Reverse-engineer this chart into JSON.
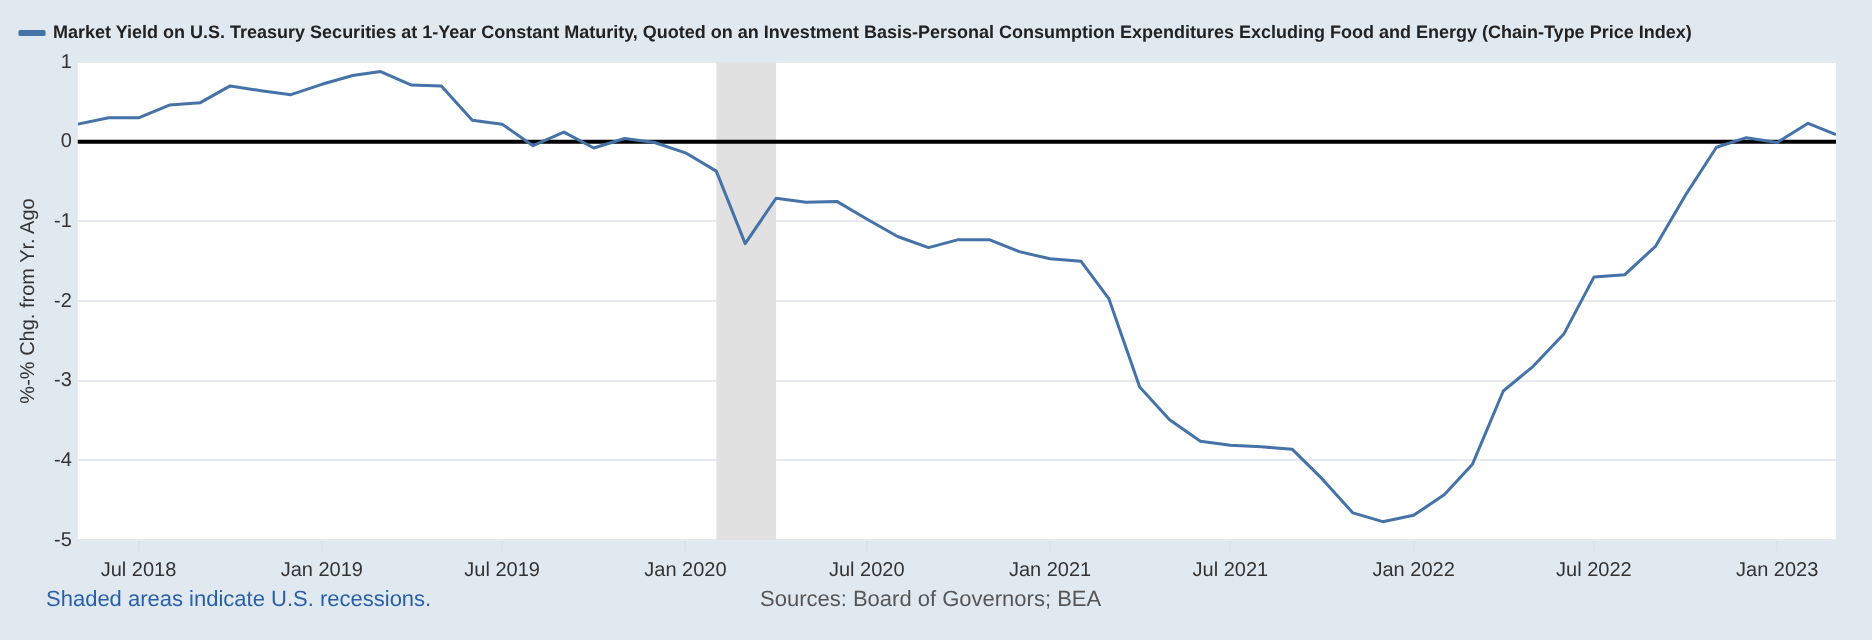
{
  "chart_data": {
    "type": "line",
    "ylabel": "%-% Chg. from Yr. Ago",
    "x": [
      "2018-05",
      "2018-06",
      "2018-07",
      "2018-08",
      "2018-09",
      "2018-10",
      "2018-11",
      "2018-12",
      "2019-01",
      "2019-02",
      "2019-03",
      "2019-04",
      "2019-05",
      "2019-06",
      "2019-07",
      "2019-08",
      "2019-09",
      "2019-10",
      "2019-11",
      "2019-12",
      "2020-01",
      "2020-02",
      "2020-03",
      "2020-04",
      "2020-05",
      "2020-06",
      "2020-07",
      "2020-08",
      "2020-09",
      "2020-10",
      "2020-11",
      "2020-12",
      "2021-01",
      "2021-02",
      "2021-03",
      "2021-04",
      "2021-05",
      "2021-06",
      "2021-07",
      "2021-08",
      "2021-09",
      "2021-10",
      "2021-11",
      "2021-12",
      "2022-01",
      "2022-02",
      "2022-03",
      "2022-04",
      "2022-05",
      "2022-06",
      "2022-07",
      "2022-08",
      "2022-09",
      "2022-10",
      "2022-11",
      "2022-12",
      "2023-01",
      "2023-02",
      "2023-03"
    ],
    "series": [
      {
        "name": "Market Yield on U.S. Treasury Securities at 1-Year Constant Maturity, Quoted on an Investment Basis-Personal Consumption Expenditures Excluding Food and Energy (Chain-Type Price Index)",
        "color": "#4572a7",
        "values": [
          0.22,
          0.3,
          0.3,
          0.46,
          0.49,
          0.7,
          0.64,
          0.59,
          0.72,
          0.83,
          0.88,
          0.71,
          0.7,
          0.27,
          0.22,
          -0.05,
          0.12,
          -0.08,
          0.04,
          -0.01,
          -0.14,
          -0.37,
          -1.28,
          -0.71,
          -0.76,
          -0.75,
          -0.97,
          -1.19,
          -1.33,
          -1.23,
          -1.23,
          -1.38,
          -1.47,
          -1.5,
          -1.97,
          -3.08,
          -3.49,
          -3.76,
          -3.81,
          -3.83,
          -3.86,
          -4.23,
          -4.66,
          -4.77,
          -4.69,
          -4.43,
          -4.05,
          -3.13,
          -2.82,
          -2.41,
          -1.7,
          -1.67,
          -1.31,
          -0.67,
          -0.07,
          0.05,
          -0.01,
          0.23,
          0.09
        ]
      }
    ],
    "xlim": [
      "2018-05",
      "2023-03"
    ],
    "xticks": [
      {
        "value": "2018-07",
        "label": "Jul 2018"
      },
      {
        "value": "2019-01",
        "label": "Jan 2019"
      },
      {
        "value": "2019-07",
        "label": "Jul 2019"
      },
      {
        "value": "2020-01",
        "label": "Jan 2020"
      },
      {
        "value": "2020-07",
        "label": "Jul 2020"
      },
      {
        "value": "2021-01",
        "label": "Jan 2021"
      },
      {
        "value": "2021-07",
        "label": "Jul 2021"
      },
      {
        "value": "2022-01",
        "label": "Jan 2022"
      },
      {
        "value": "2022-07",
        "label": "Jul 2022"
      },
      {
        "value": "2023-01",
        "label": "Jan 2023"
      }
    ],
    "ylim": [
      -5,
      1
    ],
    "yticks": [
      -5,
      -4,
      -3,
      -2,
      -1,
      0,
      1
    ],
    "ref_lines": [
      {
        "axis": "y",
        "value": 0,
        "color": "#000000"
      }
    ],
    "bands": [
      {
        "axis": "x",
        "from": "2020-02",
        "to": "2020-04",
        "color": "#e1e1e1"
      }
    ],
    "annotations": [
      "Shaded areas indicate U.S. recessions.",
      "Sources: Board of Governors; BEA"
    ],
    "grid": "y",
    "legend": "top left",
    "marker": "none",
    "line_style": "solid"
  }
}
